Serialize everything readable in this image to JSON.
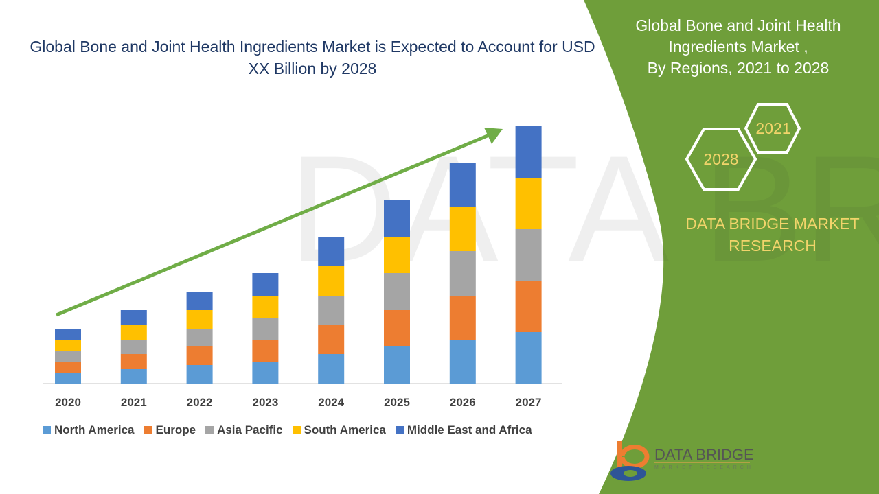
{
  "header": {
    "title": "Global Bone and Joint Health Ingredients Market is Expected to Account for USD XX Billion by 2028"
  },
  "side_panel": {
    "title_lines": [
      "Global Bone and Joint Health",
      "Ingredients Market ,",
      "By Regions, 2021 to 2028"
    ],
    "hex_start": "2021",
    "hex_end": "2028",
    "brand_lines": [
      "DATA BRIDGE MARKET",
      "RESEARCH"
    ],
    "logo_text": "DATA BRIDGE",
    "logo_subtext": "MARKET RESEARCH",
    "panel_color": "#6f9e3a",
    "accent_text_color": "#f2d46b"
  },
  "chart_data": {
    "type": "bar",
    "stacked": true,
    "title": "",
    "xlabel": "",
    "ylabel": "",
    "categories": [
      "2020",
      "2021",
      "2022",
      "2023",
      "2024",
      "2025",
      "2026",
      "2027"
    ],
    "series": [
      {
        "name": "North America",
        "color": "#5b9bd5",
        "values": [
          16,
          21,
          27,
          32,
          43,
          54,
          64,
          75
        ]
      },
      {
        "name": "Europe",
        "color": "#ed7d31",
        "values": [
          16,
          22,
          27,
          32,
          43,
          53,
          64,
          75
        ]
      },
      {
        "name": "Asia Pacific",
        "color": "#a5a5a5",
        "values": [
          16,
          21,
          26,
          32,
          42,
          54,
          65,
          75
        ]
      },
      {
        "name": "South America",
        "color": "#ffc000",
        "values": [
          16,
          22,
          27,
          32,
          43,
          53,
          64,
          75
        ]
      },
      {
        "name": "Middle East and Africa",
        "color": "#4472c4",
        "values": [
          16,
          21,
          27,
          33,
          43,
          54,
          64,
          75
        ]
      }
    ],
    "y_axis_shown": false,
    "grid": false,
    "legend_position": "bottom",
    "trend_arrow_color": "#70ad47"
  }
}
